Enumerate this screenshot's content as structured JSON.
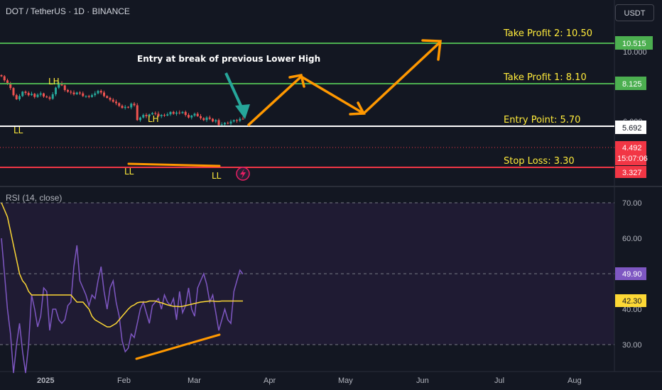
{
  "header": {
    "symbol_line": "DOT / TetherUS · 1D · BINANCE",
    "currency": "USDT"
  },
  "chart_data": {
    "type": "candlestick",
    "symbol": "DOT / TetherUS",
    "interval": "1D",
    "exchange": "BINANCE",
    "y_scale": "log",
    "x_ticks": [
      "2025",
      "Feb",
      "Mar",
      "Apr",
      "May",
      "Jun",
      "Jul",
      "Aug"
    ],
    "y_ticks": [
      "10.000",
      "6.000"
    ],
    "levels": [
      {
        "name": "take-profit-2",
        "label": "Take Profit 2: 10.50",
        "tag": "10.515",
        "price": 10.515,
        "color": "#4caf50"
      },
      {
        "name": "take-profit-1",
        "label": "Take Profit 1: 8.10",
        "tag": "8.125",
        "price": 8.125,
        "color": "#4caf50"
      },
      {
        "name": "entry-point",
        "label": "Entry Point: 5.70",
        "tag": "5.692",
        "price": 5.692,
        "color": "#ffffff"
      },
      {
        "name": "stop-loss",
        "label": "Stop Loss: 3.30",
        "tag": "3.327",
        "price": 3.327,
        "color": "#f23645"
      }
    ],
    "current_price": {
      "price": "4.492",
      "countdown": "15:07:06",
      "value": 4.492,
      "color": "#f23645"
    },
    "annotation": "Entry at break of previous Lower High",
    "swing_labels": [
      "LH",
      "LL",
      "LH",
      "LL",
      "LL"
    ],
    "projected_path": [
      {
        "date": "2025-03-21",
        "price": 5.7
      },
      {
        "date": "2025-04-12",
        "price": 8.4
      },
      {
        "date": "2025-05-05",
        "price": 6.2
      },
      {
        "date": "2025-06-10",
        "price": 10.5
      }
    ],
    "rsi": {
      "title": "RSI (14, close)",
      "levels": [
        "70.00",
        "60.00",
        "40.00",
        "30.00"
      ],
      "rsi_value": "49.90",
      "ma_value": "42.30",
      "rsi_color": "#7e57c2",
      "ma_color": "#fdd835",
      "range": [
        0,
        100
      ],
      "upper_band": 70,
      "lower_band": 30,
      "mid_line": 50
    },
    "closes": [
      9.2,
      8.6,
      8.1,
      7.55,
      6.7,
      6.25,
      6.6,
      7.1,
      6.95,
      6.7,
      6.85,
      6.5,
      6.75,
      6.9,
      6.55,
      6.45,
      6.3,
      6.8,
      7.6,
      8.2,
      7.9,
      7.3,
      7.1,
      7.0,
      6.8,
      7.0,
      6.9,
      6.6,
      6.6,
      6.5,
      6.7,
      6.9,
      7.2,
      7.0,
      6.6,
      6.4,
      6.2,
      6.0,
      5.85,
      5.6,
      5.4,
      5.5,
      5.45,
      5.8,
      5.65,
      4.4,
      4.6,
      4.8,
      4.7,
      4.85,
      4.95,
      4.9,
      4.7,
      4.8,
      4.75,
      4.85,
      5.05,
      4.9,
      5.0,
      4.95,
      5.05,
      4.8,
      4.6,
      4.75,
      4.9,
      4.7,
      4.55,
      4.4,
      4.6,
      4.5,
      4.3,
      4.4,
      4.05,
      4.1,
      4.2,
      4.15,
      4.3,
      4.4,
      4.35,
      4.5,
      4.49
    ],
    "rsi_values": [
      60,
      50,
      40,
      33,
      22,
      30,
      36,
      28,
      22,
      30,
      44,
      40,
      35,
      38,
      46,
      45,
      34,
      40,
      40,
      37,
      36,
      37,
      41,
      42,
      52,
      58,
      48,
      46,
      44,
      41,
      44,
      43,
      48,
      52,
      45,
      40,
      46,
      48,
      42,
      38,
      31,
      28,
      29,
      33,
      32,
      36,
      40,
      42,
      39,
      36,
      41,
      42,
      43,
      40,
      44,
      42,
      41,
      43,
      37,
      45,
      39,
      41,
      46,
      40,
      38,
      46,
      48,
      50,
      47,
      42,
      44,
      39,
      34,
      37,
      40,
      37,
      36,
      45,
      48,
      51,
      49.9
    ],
    "rsi_ma_values": [
      70,
      68,
      66,
      62,
      58,
      54,
      50,
      48,
      47,
      45,
      44,
      44,
      44,
      44,
      44,
      44,
      44,
      44,
      44,
      44,
      44,
      44,
      44,
      44,
      43,
      42,
      42,
      42,
      41,
      40,
      38,
      37,
      36.5,
      36,
      35.5,
      35,
      35,
      35.5,
      36,
      37,
      38,
      39,
      40,
      40.8,
      41.2,
      41.8,
      42,
      42,
      42,
      42.3,
      42.3,
      42.3,
      42,
      41.8,
      41.5,
      41.2,
      41,
      40.8,
      40.8,
      40.7,
      40.8,
      41,
      41.2,
      41.4,
      41.6,
      41.8,
      42,
      42.1,
      42.2,
      42.3,
      42.3,
      42.2,
      42.2,
      42.3,
      42.3,
      42.3,
      42.3,
      42.3,
      42.3,
      42.3,
      42.3
    ]
  }
}
